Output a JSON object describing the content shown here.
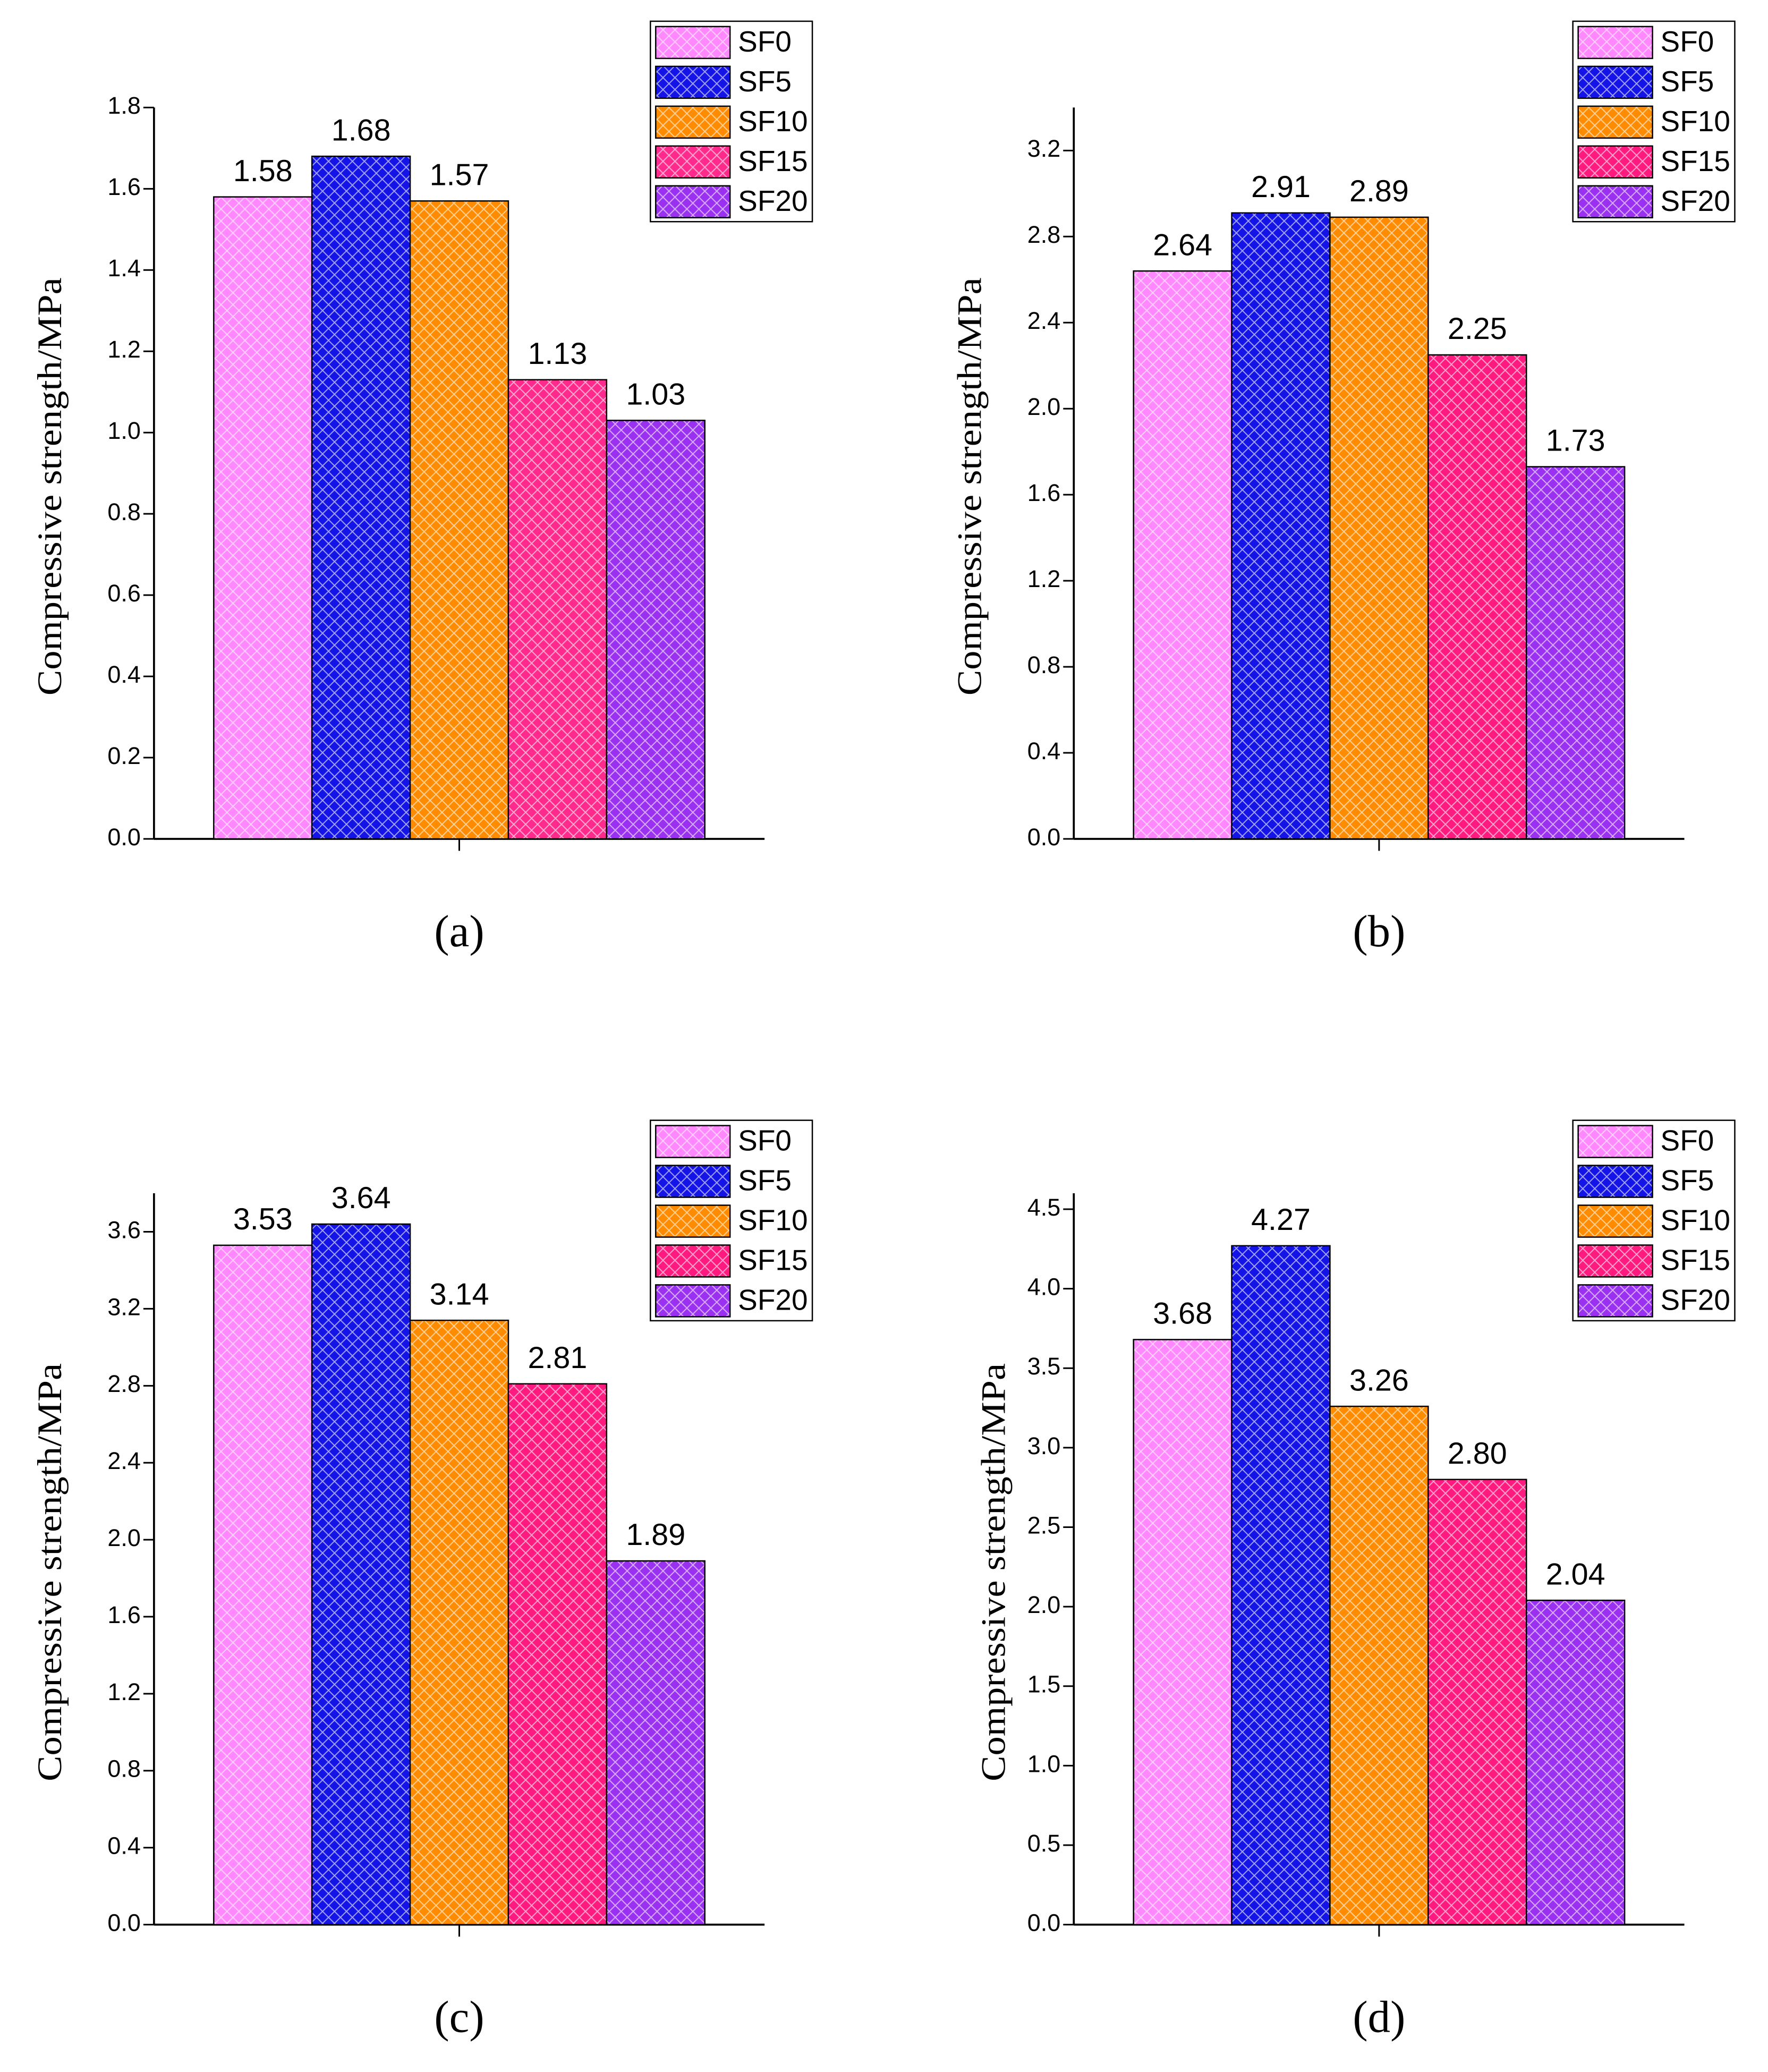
{
  "chart_data": [
    {
      "type": "bar",
      "title": "(a)",
      "y_label": "Compressive strength/MPa",
      "categories": [
        null
      ],
      "ylim": [
        0,
        1.8
      ],
      "yticks": [
        {
          "value": 0,
          "label": "0.0"
        },
        0.2,
        0.4,
        0.6,
        0.8,
        {
          "value": 1,
          "label": "1.0"
        },
        1.2,
        1.4,
        1.6,
        1.8
      ],
      "series": [
        {
          "name": "SF0",
          "color": "#ff88ff",
          "values": [
            1.58
          ],
          "value_labels": [
            "1.58"
          ]
        },
        {
          "name": "SF5",
          "color": "#1414e6",
          "values": [
            1.68
          ],
          "value_labels": [
            "1.68"
          ]
        },
        {
          "name": "SF10",
          "color": "#ff8c00",
          "values": [
            1.57
          ],
          "value_labels": [
            "1.57"
          ]
        },
        {
          "name": "SF15",
          "color": "#ff2a8c",
          "values": [
            1.13
          ],
          "value_labels": [
            "1.13"
          ]
        },
        {
          "name": "SF20",
          "color": "#9a30f0",
          "values": [
            1.03
          ],
          "value_labels": [
            "1.03"
          ]
        }
      ]
    },
    {
      "type": "bar",
      "title": "(b)",
      "y_label": "Compressive strength/MPa",
      "categories": [
        null
      ],
      "ylim": [
        0,
        3.4
      ],
      "yticks": [
        {
          "value": 0,
          "label": "0.0"
        },
        0.4,
        0.8,
        1.2,
        1.6,
        {
          "value": 2,
          "label": "2.0"
        },
        2.4,
        2.8,
        3.2
      ],
      "series": [
        {
          "name": "SF0",
          "color": "#ff88ff",
          "values": [
            2.64
          ],
          "value_labels": [
            "2.64"
          ]
        },
        {
          "name": "SF5",
          "color": "#1414e6",
          "values": [
            2.91
          ],
          "value_labels": [
            "2.91"
          ]
        },
        {
          "name": "SF10",
          "color": "#ff8c00",
          "values": [
            2.89
          ],
          "value_labels": [
            "2.89"
          ]
        },
        {
          "name": "SF15",
          "color": "#ff1a80",
          "values": [
            2.25
          ],
          "value_labels": [
            "2.25"
          ]
        },
        {
          "name": "SF20",
          "color": "#9a30f0",
          "values": [
            1.73
          ],
          "value_labels": [
            "1.73"
          ]
        }
      ]
    },
    {
      "type": "bar",
      "title": "(c)",
      "y_label": "Compressive strength/MPa",
      "categories": [
        null
      ],
      "ylim": [
        0,
        3.8
      ],
      "yticks": [
        {
          "value": 0,
          "label": "0.0"
        },
        0.4,
        0.8,
        1.2,
        1.6,
        {
          "value": 2,
          "label": "2.0"
        },
        2.4,
        2.8,
        3.2,
        3.6
      ],
      "series": [
        {
          "name": "SF0",
          "color": "#ff88ff",
          "values": [
            3.53
          ],
          "value_labels": [
            "3.53"
          ]
        },
        {
          "name": "SF5",
          "color": "#1414e6",
          "values": [
            3.64
          ],
          "value_labels": [
            "3.64"
          ]
        },
        {
          "name": "SF10",
          "color": "#ff8c00",
          "values": [
            3.14
          ],
          "value_labels": [
            "3.14"
          ]
        },
        {
          "name": "SF15",
          "color": "#ff1a80",
          "values": [
            2.81
          ],
          "value_labels": [
            "2.81"
          ]
        },
        {
          "name": "SF20",
          "color": "#9a30f0",
          "values": [
            1.89
          ],
          "value_labels": [
            "1.89"
          ]
        }
      ]
    },
    {
      "type": "bar",
      "title": "(d)",
      "y_label": "Compressive strength/MPa",
      "categories": [
        null
      ],
      "ylim": [
        0,
        4.6
      ],
      "yticks": [
        {
          "value": 0,
          "label": "0.0"
        },
        0.5,
        {
          "value": 1,
          "label": "1.0"
        },
        1.5,
        {
          "value": 2,
          "label": "2.0"
        },
        2.5,
        {
          "value": 3,
          "label": "3.0"
        },
        3.5,
        {
          "value": 4,
          "label": "4.0"
        },
        4.5
      ],
      "series": [
        {
          "name": "SF0",
          "color": "#ff88ff",
          "values": [
            3.68
          ],
          "value_labels": [
            "3.68"
          ]
        },
        {
          "name": "SF5",
          "color": "#1414e6",
          "values": [
            4.27
          ],
          "value_labels": [
            "4.27"
          ]
        },
        {
          "name": "SF10",
          "color": "#ff8c00",
          "values": [
            3.26
          ],
          "value_labels": [
            "3.26"
          ]
        },
        {
          "name": "SF15",
          "color": "#ff1a80",
          "values": [
            2.8
          ],
          "value_labels": [
            "2.80"
          ]
        },
        {
          "name": "SF20",
          "color": "#9a30f0",
          "values": [
            2.04
          ],
          "value_labels": [
            "2.04"
          ]
        }
      ]
    }
  ]
}
